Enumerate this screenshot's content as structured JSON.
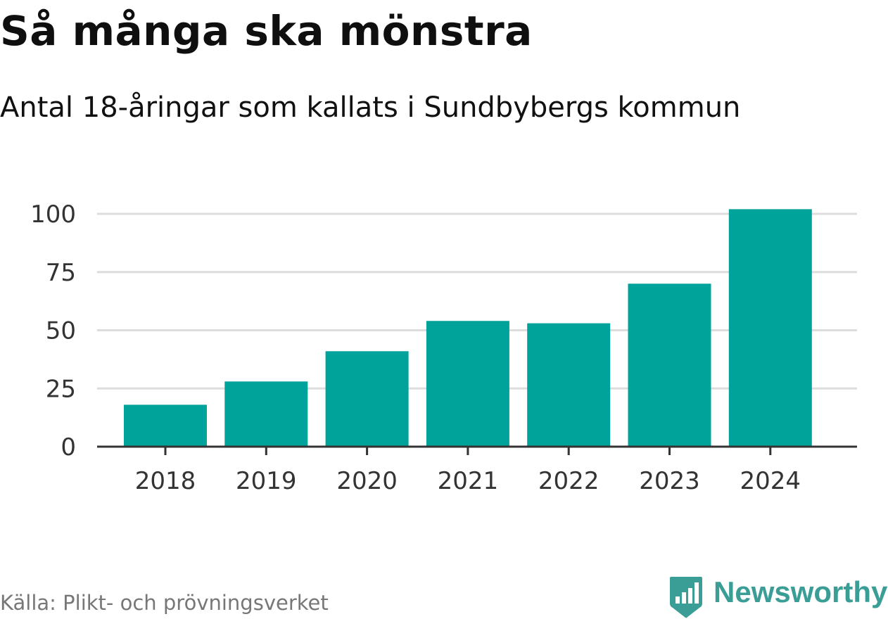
{
  "header": {
    "title": "Så många ska mönstra",
    "subtitle": "Antal 18-åringar som kallats i Sundbybergs kommun"
  },
  "footer": {
    "source": "Källa: Plikt- och prövningsverket",
    "brand": "Newsworthy",
    "brand_icon": "newsworthy-logo-icon"
  },
  "colors": {
    "bar": "#00a39a",
    "grid": "#dddddd",
    "axis": "#333333",
    "tick_text": "#333333",
    "brand": "#3a9e96"
  },
  "chart_data": {
    "type": "bar",
    "title": "Så många ska mönstra",
    "subtitle": "Antal 18-åringar som kallats i Sundbybergs kommun",
    "categories": [
      "2018",
      "2019",
      "2020",
      "2021",
      "2022",
      "2023",
      "2024"
    ],
    "values": [
      18,
      28,
      41,
      54,
      53,
      70,
      102
    ],
    "xlabel": "",
    "ylabel": "",
    "ylim": [
      0,
      100
    ],
    "yticks": [
      0,
      25,
      50,
      75,
      100
    ],
    "ytick_labels": [
      "0",
      "25",
      "50",
      "75",
      "100"
    ],
    "grid": true,
    "legend": "none"
  }
}
